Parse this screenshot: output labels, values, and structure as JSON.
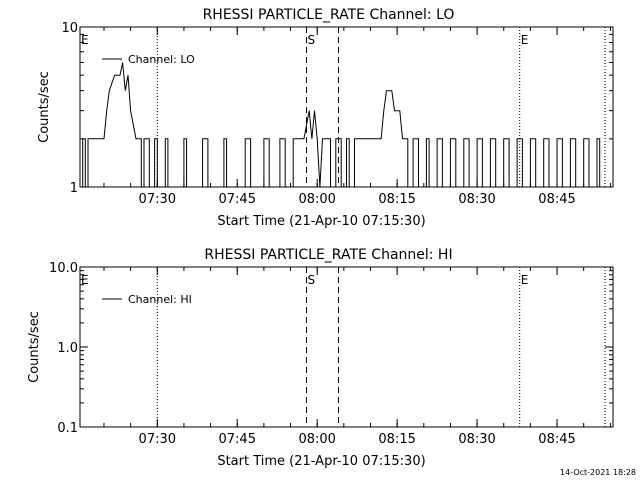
{
  "footer": {
    "timestamp": "14-Oct-2021 18:28"
  },
  "chart_data": [
    {
      "type": "line",
      "title": "RHESSI PARTICLE_RATE Channel: LO",
      "xlabel": "Start Time (21-Apr-10 07:15:30)",
      "ylabel": "Counts/sec",
      "ylim": [
        1,
        10
      ],
      "yscale": "log",
      "yticks": [
        1,
        10
      ],
      "ytick_labels": [
        "1",
        "10"
      ],
      "xlim": [
        "07:15:30",
        "08:55:30"
      ],
      "xticks": [
        "07:30",
        "07:45",
        "08:00",
        "08:15",
        "08:30",
        "08:45"
      ],
      "legend": {
        "position": "top-left",
        "entries": [
          "Channel: LO"
        ]
      },
      "markers": [
        {
          "time": "07:15:30",
          "label": "E",
          "style": "dotted"
        },
        {
          "time": "07:30",
          "label": "",
          "style": "dotted"
        },
        {
          "time": "07:58",
          "label": "S",
          "style": "dashed"
        },
        {
          "time": "08:04",
          "label": "",
          "style": "dashed"
        },
        {
          "time": "08:38",
          "label": "E",
          "style": "dotted"
        },
        {
          "time": "08:54",
          "label": "",
          "style": "dotted"
        }
      ],
      "series": [
        {
          "name": "Channel: LO",
          "points": [
            [
              "07:15:30",
              1
            ],
            [
              "07:16:00",
              1
            ],
            [
              "07:16:00",
              2
            ],
            [
              "07:16:30",
              2
            ],
            [
              "07:16:30",
              1
            ],
            [
              "07:17:00",
              1
            ],
            [
              "07:17:00",
              2
            ],
            [
              "07:20:00",
              2
            ],
            [
              "07:20:30",
              3
            ],
            [
              "07:21:00",
              4
            ],
            [
              "07:22:00",
              5
            ],
            [
              "07:23:00",
              5
            ],
            [
              "07:23:30",
              6
            ],
            [
              "07:24:00",
              4
            ],
            [
              "07:24:30",
              5
            ],
            [
              "07:25:00",
              3
            ],
            [
              "07:26:00",
              2
            ],
            [
              "07:27:00",
              2
            ],
            [
              "07:27:00",
              1
            ],
            [
              "07:27:30",
              1
            ],
            [
              "07:27:30",
              2
            ],
            [
              "07:28:30",
              2
            ],
            [
              "07:28:30",
              1
            ],
            [
              "07:29:30",
              1
            ],
            [
              "07:29:30",
              2
            ],
            [
              "07:30:00",
              2
            ],
            [
              "07:30:00",
              1
            ],
            [
              "07:31:30",
              1
            ],
            [
              "07:31:30",
              2
            ],
            [
              "07:32:00",
              2
            ],
            [
              "07:32:00",
              1
            ],
            [
              "07:35:00",
              1
            ],
            [
              "07:35:00",
              2
            ],
            [
              "07:35:30",
              2
            ],
            [
              "07:35:30",
              1
            ],
            [
              "07:38:30",
              1
            ],
            [
              "07:38:30",
              2
            ],
            [
              "07:39:30",
              2
            ],
            [
              "07:39:30",
              1
            ],
            [
              "07:42:30",
              1
            ],
            [
              "07:42:30",
              2
            ],
            [
              "07:43:00",
              2
            ],
            [
              "07:43:00",
              1
            ],
            [
              "07:46:30",
              1
            ],
            [
              "07:46:30",
              2
            ],
            [
              "07:47:30",
              2
            ],
            [
              "07:47:30",
              1
            ],
            [
              "07:50:00",
              1
            ],
            [
              "07:50:00",
              2
            ],
            [
              "07:51:00",
              2
            ],
            [
              "07:51:00",
              1
            ],
            [
              "07:53:00",
              1
            ],
            [
              "07:53:00",
              2
            ],
            [
              "07:54:00",
              2
            ],
            [
              "07:54:00",
              1
            ],
            [
              "07:55:30",
              1
            ],
            [
              "07:55:30",
              2
            ],
            [
              "07:57:30",
              2
            ],
            [
              "07:58:30",
              3
            ],
            [
              "07:59:00",
              2
            ],
            [
              "07:59:30",
              3
            ],
            [
              "08:00:00",
              2
            ],
            [
              "08:00:30",
              1
            ],
            [
              "08:01:00",
              2
            ],
            [
              "08:02:30",
              2
            ],
            [
              "08:02:30",
              1
            ],
            [
              "08:03:30",
              1
            ],
            [
              "08:03:30",
              2
            ],
            [
              "08:04:30",
              2
            ],
            [
              "08:04:30",
              1
            ],
            [
              "08:05:30",
              1
            ],
            [
              "08:05:30",
              2
            ],
            [
              "08:06:00",
              2
            ],
            [
              "08:06:00",
              1
            ],
            [
              "08:07:00",
              1
            ],
            [
              "08:07:00",
              2
            ],
            [
              "08:12:00",
              2
            ],
            [
              "08:12:30",
              3
            ],
            [
              "08:13:00",
              4
            ],
            [
              "08:14:00",
              4
            ],
            [
              "08:14:30",
              3
            ],
            [
              "08:15:30",
              3
            ],
            [
              "08:16:00",
              2
            ],
            [
              "08:17:00",
              2
            ],
            [
              "08:17:00",
              1
            ],
            [
              "08:18:00",
              1
            ],
            [
              "08:18:00",
              2
            ],
            [
              "08:19:00",
              2
            ],
            [
              "08:19:00",
              1
            ],
            [
              "08:20:30",
              1
            ],
            [
              "08:20:30",
              2
            ],
            [
              "08:21:00",
              2
            ],
            [
              "08:21:00",
              1
            ],
            [
              "08:22:30",
              1
            ],
            [
              "08:22:30",
              2
            ],
            [
              "08:23:30",
              2
            ],
            [
              "08:23:30",
              1
            ],
            [
              "08:25:00",
              1
            ],
            [
              "08:25:00",
              2
            ],
            [
              "08:26:00",
              2
            ],
            [
              "08:26:00",
              1
            ],
            [
              "08:27:30",
              1
            ],
            [
              "08:27:30",
              2
            ],
            [
              "08:28:30",
              2
            ],
            [
              "08:28:30",
              1
            ],
            [
              "08:30:00",
              1
            ],
            [
              "08:30:00",
              2
            ],
            [
              "08:31:00",
              2
            ],
            [
              "08:31:00",
              1
            ],
            [
              "08:32:30",
              1
            ],
            [
              "08:32:30",
              2
            ],
            [
              "08:33:30",
              2
            ],
            [
              "08:33:30",
              1
            ],
            [
              "08:35:00",
              1
            ],
            [
              "08:35:00",
              2
            ],
            [
              "08:36:00",
              2
            ],
            [
              "08:36:00",
              1
            ],
            [
              "08:37:30",
              1
            ],
            [
              "08:37:30",
              2
            ],
            [
              "08:38:30",
              2
            ],
            [
              "08:38:30",
              1
            ],
            [
              "08:40:00",
              1
            ],
            [
              "08:40:00",
              2
            ],
            [
              "08:41:00",
              2
            ],
            [
              "08:41:00",
              1
            ],
            [
              "08:42:30",
              1
            ],
            [
              "08:42:30",
              2
            ],
            [
              "08:43:30",
              2
            ],
            [
              "08:43:30",
              1
            ],
            [
              "08:45:00",
              1
            ],
            [
              "08:45:00",
              2
            ],
            [
              "08:46:00",
              2
            ],
            [
              "08:46:00",
              1
            ],
            [
              "08:47:30",
              1
            ],
            [
              "08:47:30",
              2
            ],
            [
              "08:48:30",
              2
            ],
            [
              "08:48:30",
              1
            ],
            [
              "08:50:00",
              1
            ],
            [
              "08:50:00",
              2
            ],
            [
              "08:51:00",
              2
            ],
            [
              "08:51:00",
              1
            ],
            [
              "08:52:30",
              1
            ],
            [
              "08:52:30",
              2
            ],
            [
              "08:53:00",
              2
            ],
            [
              "08:53:00",
              1
            ],
            [
              "08:54:00",
              1
            ]
          ]
        }
      ]
    },
    {
      "type": "line",
      "title": "RHESSI PARTICLE_RATE Channel: HI",
      "xlabel": "Start Time (21-Apr-10 07:15:30)",
      "ylabel": "Counts/sec",
      "ylim": [
        0.1,
        10
      ],
      "yscale": "log",
      "yticks": [
        0.1,
        1,
        10
      ],
      "ytick_labels": [
        "0.1",
        "1.0",
        "10.0"
      ],
      "xlim": [
        "07:15:30",
        "08:55:30"
      ],
      "xticks": [
        "07:30",
        "07:45",
        "08:00",
        "08:15",
        "08:30",
        "08:45"
      ],
      "legend": {
        "position": "top-left",
        "entries": [
          "Channel: HI"
        ]
      },
      "markers": [
        {
          "time": "07:15:30",
          "label": "E",
          "style": "dotted"
        },
        {
          "time": "07:30",
          "label": "",
          "style": "dotted"
        },
        {
          "time": "07:58",
          "label": "S",
          "style": "dashed"
        },
        {
          "time": "08:04",
          "label": "",
          "style": "dashed"
        },
        {
          "time": "08:38",
          "label": "E",
          "style": "dotted"
        },
        {
          "time": "08:54",
          "label": "",
          "style": "dotted"
        }
      ],
      "series": [
        {
          "name": "Channel: HI",
          "points": []
        }
      ]
    }
  ]
}
